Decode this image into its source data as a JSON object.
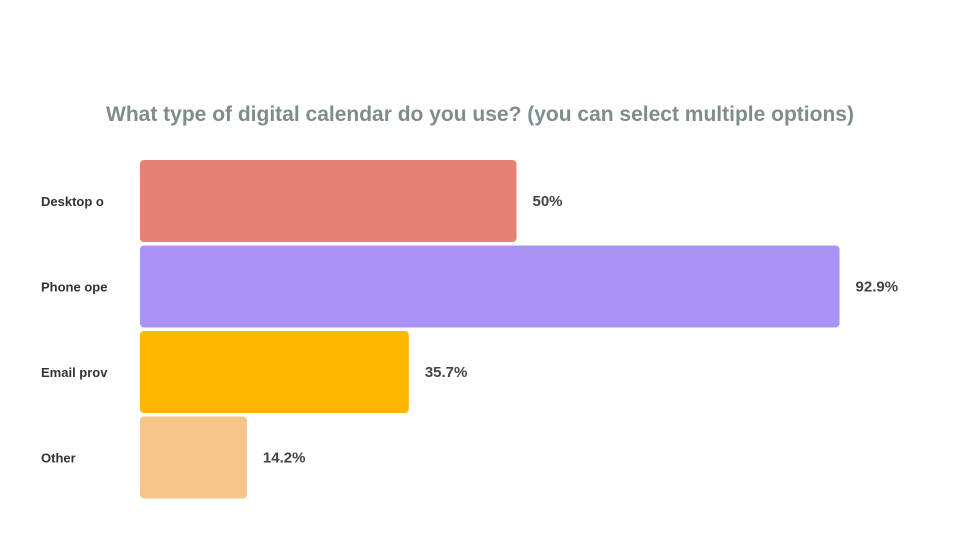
{
  "chart_data": {
    "type": "bar",
    "orientation": "horizontal",
    "title": "What type of digital calendar do you use? (you can select multiple options)",
    "categories": [
      "Desktop o",
      "Phone ope",
      "Email prov",
      "Other"
    ],
    "values": [
      50,
      92.9,
      35.7,
      14.2
    ],
    "value_labels": [
      "50%",
      "92.9%",
      "35.7%",
      "14.2%"
    ],
    "colors": [
      "#e58273",
      "#ab92f7",
      "#feb800",
      "#f6c589"
    ],
    "xlim": [
      0,
      100
    ],
    "grid": false,
    "legend": "none"
  }
}
